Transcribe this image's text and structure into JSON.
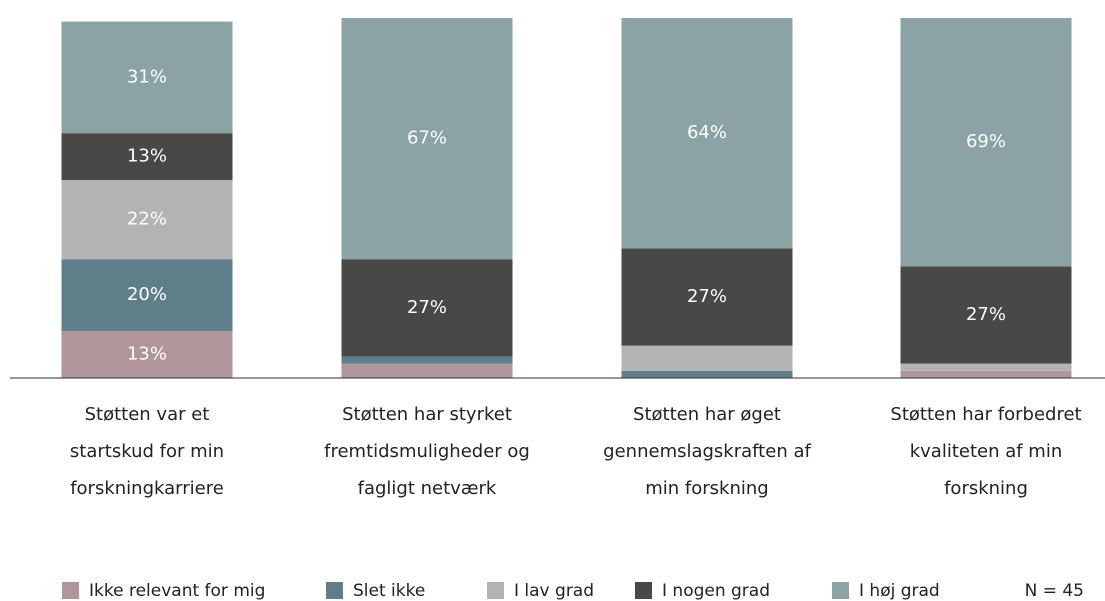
{
  "chart_data": {
    "type": "stacked_bar",
    "categories": [
      "Støtten var et startskud for min forskningkarriere",
      "Støtten har styrket fremtidsmuligheder og fagligt netværk",
      "Støtten har øget gennemslagskraften af min forskning",
      "Støtten har forbedret kvaliteten af min forskning"
    ],
    "series": [
      {
        "name": "Ikke relevant for mig",
        "color": "#b0959a",
        "values": [
          13,
          4,
          0,
          2
        ],
        "value_labels": [
          "13%",
          null,
          null,
          null
        ]
      },
      {
        "name": "Slet ikke",
        "color": "#5e7f89",
        "values": [
          20,
          2,
          2,
          0
        ],
        "value_labels": [
          "20%",
          null,
          null,
          null
        ]
      },
      {
        "name": "I lav grad",
        "color": "#b3b3b3",
        "values": [
          22,
          0,
          7,
          2
        ],
        "value_labels": [
          "22%",
          null,
          null,
          null
        ]
      },
      {
        "name": "I nogen grad",
        "color": "#484846",
        "values": [
          13,
          27,
          27,
          27
        ],
        "value_labels": [
          "13%",
          "27%",
          "27%",
          "27%"
        ]
      },
      {
        "name": "I høj grad",
        "color": "#8ca3a5",
        "values": [
          31,
          67,
          64,
          69
        ],
        "value_labels": [
          "31%",
          "67%",
          "64%",
          "69%"
        ]
      }
    ],
    "ylim": [
      0,
      100
    ],
    "annotation": "N = 45"
  }
}
